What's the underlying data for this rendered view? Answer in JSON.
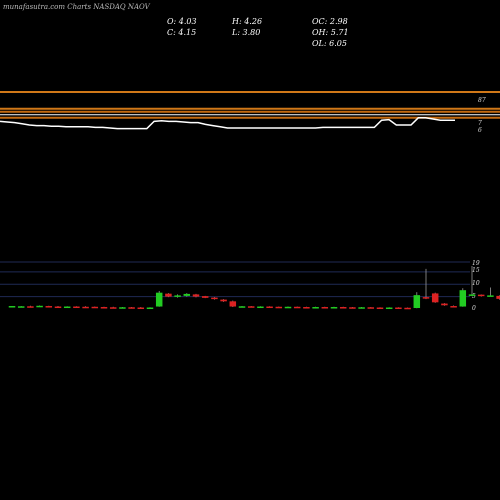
{
  "header": {
    "title": "munafasutra.com Charts NASDAQ NAOV"
  },
  "ohlc": {
    "open": "O: 4.03",
    "high": "H: 4.26",
    "oc": "OC: 2.98",
    "close": "C: 4.15",
    "low": "L: 3.80",
    "oh": "OH: 5.71",
    "ol": "OL: 6.05"
  },
  "colors": {
    "background": "#000000",
    "up": "#22cc22",
    "down": "#dd2222",
    "ma_orange": "#d07818",
    "price_line": "#ffffff",
    "grid": "#1f2a55"
  },
  "chart_data": [
    {
      "type": "line",
      "title": "",
      "y_tick_labels": [
        "87",
        "7",
        "6"
      ],
      "series": [
        {
          "values": [
            6.3,
            6.25,
            6.2,
            6.1,
            6.0,
            5.95,
            5.95,
            5.9,
            5.9,
            5.85,
            5.85,
            5.85,
            5.85,
            5.8,
            5.8,
            5.75,
            5.7,
            5.7,
            5.7,
            5.7,
            5.7,
            6.3,
            6.35,
            6.3,
            6.3,
            6.25,
            6.2,
            6.2,
            6.05,
            5.95,
            5.85,
            5.75,
            5.75,
            5.75,
            5.75,
            5.75,
            5.75,
            5.75,
            5.75,
            5.75,
            5.75,
            5.75,
            5.75,
            5.75,
            5.8,
            5.8,
            5.8,
            5.8,
            5.8,
            5.8,
            5.8,
            5.8,
            6.4,
            6.45,
            6.0,
            6.0,
            6.0,
            6.6,
            6.6,
            6.5,
            6.4,
            6.4,
            6.4
          ]
        },
        {
          "values": [
            87,
            87
          ]
        },
        {
          "values": [
            7.35,
            7.35
          ]
        },
        {
          "values": [
            7.1,
            7.1
          ]
        },
        {
          "values": [
            6.85,
            6.85
          ]
        },
        {
          "values": [
            6.6,
            6.6
          ]
        }
      ]
    },
    {
      "type": "bar",
      "title": "",
      "y_tick_labels": [
        "19",
        "15",
        "10",
        "5",
        "0"
      ],
      "ylim": [
        0,
        19
      ],
      "candles": [
        [
          1.0,
          1.2,
          0.9,
          1.2
        ],
        [
          1.0,
          1.2,
          0.9,
          1.1
        ],
        [
          1.1,
          1.3,
          0.9,
          1.0
        ],
        [
          1.0,
          1.4,
          0.9,
          1.3
        ],
        [
          1.2,
          1.3,
          0.9,
          1.0
        ],
        [
          1.0,
          1.2,
          0.8,
          0.9
        ],
        [
          0.9,
          1.1,
          0.7,
          1.0
        ],
        [
          1.0,
          1.1,
          0.8,
          0.9
        ],
        [
          0.9,
          1.1,
          0.7,
          0.8
        ],
        [
          0.9,
          1.0,
          0.7,
          0.8
        ],
        [
          0.8,
          0.9,
          0.6,
          0.7
        ],
        [
          0.7,
          0.9,
          0.5,
          0.6
        ],
        [
          0.6,
          0.8,
          0.5,
          0.7
        ],
        [
          0.7,
          0.8,
          0.5,
          0.6
        ],
        [
          0.6,
          0.8,
          0.4,
          0.5
        ],
        [
          0.5,
          0.7,
          0.4,
          0.6
        ],
        [
          1.0,
          7.3,
          0.9,
          6.6
        ],
        [
          6.2,
          6.4,
          4.8,
          5.0
        ],
        [
          4.9,
          5.9,
          4.6,
          5.5
        ],
        [
          5.3,
          6.4,
          5.0,
          6.1
        ],
        [
          5.9,
          6.1,
          4.7,
          5.0
        ],
        [
          5.2,
          5.3,
          4.4,
          4.5
        ],
        [
          4.6,
          4.8,
          3.8,
          4.0
        ],
        [
          3.8,
          4.0,
          2.9,
          3.1
        ],
        [
          3.1,
          3.4,
          0.8,
          1.0
        ],
        [
          1.0,
          1.2,
          0.8,
          1.1
        ],
        [
          1.1,
          1.2,
          0.8,
          0.9
        ],
        [
          0.9,
          1.1,
          0.7,
          1.0
        ],
        [
          1.0,
          1.1,
          0.8,
          0.9
        ],
        [
          0.9,
          1.0,
          0.7,
          0.8
        ],
        [
          0.8,
          1.0,
          0.6,
          0.9
        ],
        [
          0.9,
          1.0,
          0.7,
          0.8
        ],
        [
          0.8,
          0.9,
          0.6,
          0.7
        ],
        [
          0.7,
          0.9,
          0.6,
          0.8
        ],
        [
          0.8,
          0.9,
          0.6,
          0.7
        ],
        [
          0.7,
          0.9,
          0.6,
          0.8
        ],
        [
          0.8,
          0.9,
          0.6,
          0.7
        ],
        [
          0.7,
          0.8,
          0.5,
          0.6
        ],
        [
          0.6,
          0.8,
          0.5,
          0.7
        ],
        [
          0.7,
          0.8,
          0.5,
          0.6
        ],
        [
          0.6,
          0.7,
          0.4,
          0.5
        ],
        [
          0.5,
          0.7,
          0.4,
          0.6
        ],
        [
          0.6,
          0.7,
          0.4,
          0.5
        ],
        [
          0.5,
          0.6,
          0.3,
          0.4
        ],
        [
          0.4,
          6.8,
          0.3,
          5.6
        ],
        [
          4.8,
          16.2,
          4.0,
          4.3
        ],
        [
          6.3,
          6.6,
          2.5,
          2.7
        ],
        [
          2.2,
          2.4,
          1.3,
          1.5
        ],
        [
          1.2,
          1.4,
          0.9,
          1.0
        ],
        [
          1.0,
          8.4,
          0.9,
          7.6
        ],
        [
          5.5,
          17.4,
          5.2,
          5.9
        ],
        [
          5.8,
          5.9,
          5.0,
          5.6
        ],
        [
          5.4,
          8.7,
          5.1,
          5.5
        ],
        [
          5.3,
          5.5,
          3.8,
          4.1
        ],
        [
          4.03,
          4.26,
          3.8,
          4.15
        ]
      ]
    }
  ]
}
